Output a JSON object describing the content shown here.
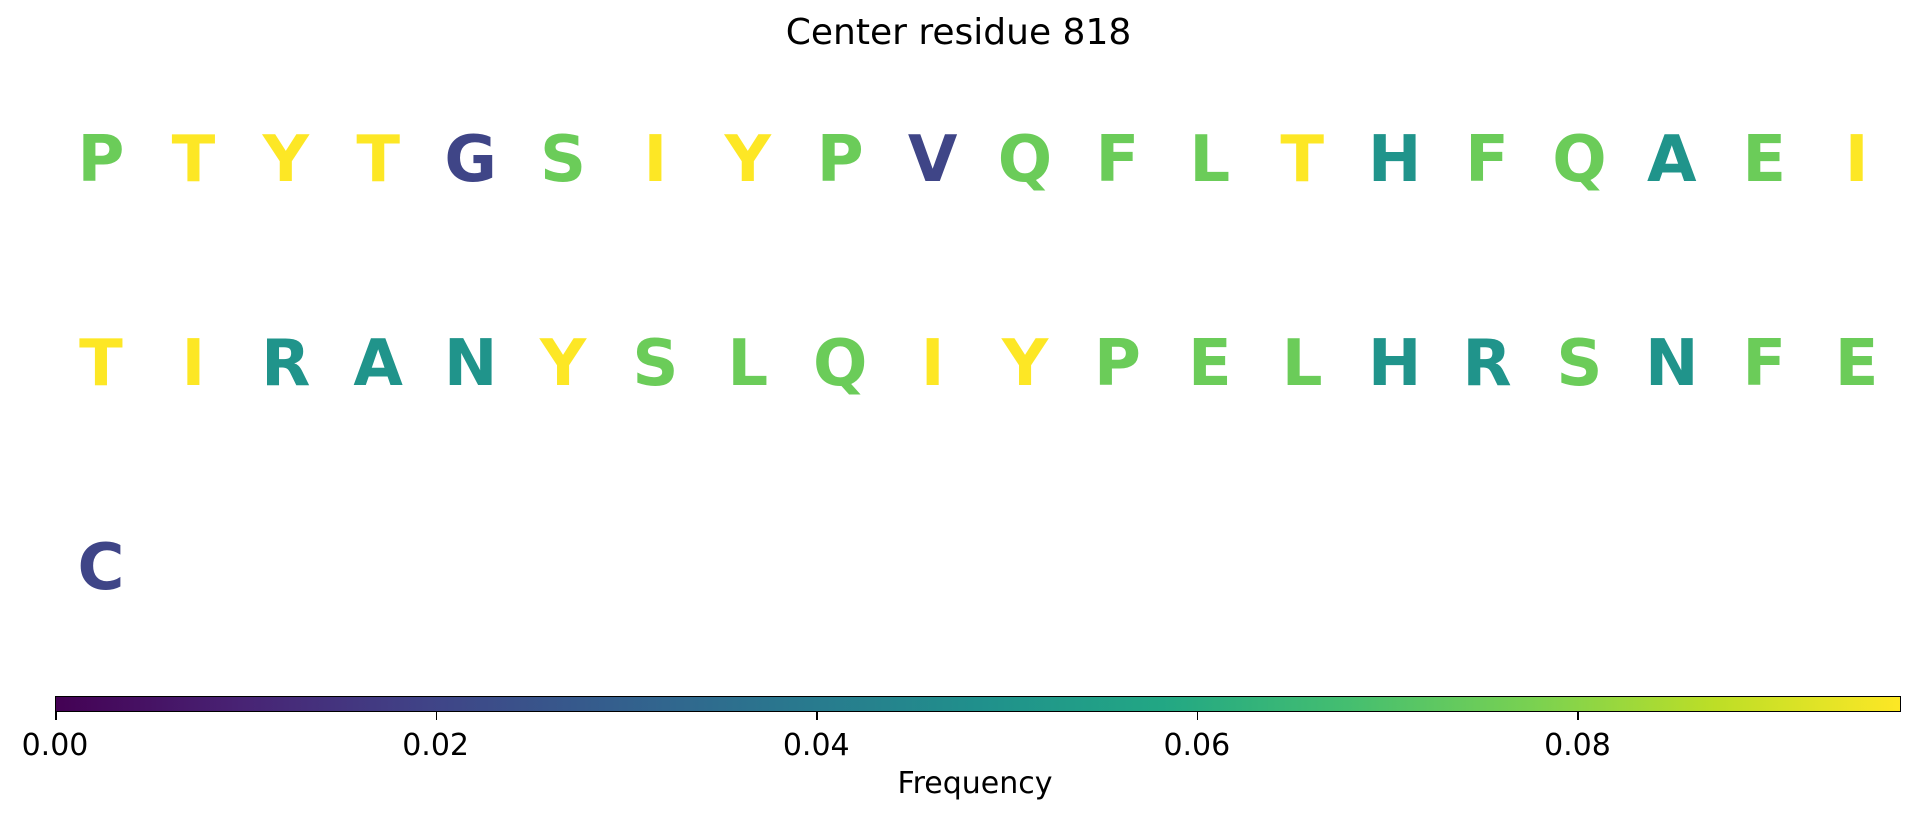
{
  "chart_data": {
    "type": "sequence-heat",
    "title": "Center residue 818",
    "rows": [
      {
        "residues": [
          "P",
          "T",
          "Y",
          "T",
          "G",
          "S",
          "I",
          "Y",
          "P",
          "V",
          "Q",
          "F",
          "L",
          "T",
          "H",
          "F",
          "Q",
          "A",
          "E",
          "I"
        ],
        "values": [
          0.075,
          0.097,
          0.097,
          0.097,
          0.02,
          0.075,
          0.097,
          0.097,
          0.075,
          0.02,
          0.075,
          0.075,
          0.075,
          0.097,
          0.05,
          0.075,
          0.075,
          0.05,
          0.075,
          0.097
        ]
      },
      {
        "residues": [
          "T",
          "I",
          "R",
          "A",
          "N",
          "Y",
          "S",
          "L",
          "Q",
          "I",
          "Y",
          "P",
          "E",
          "L",
          "H",
          "R",
          "S",
          "N",
          "F",
          "E"
        ],
        "values": [
          0.097,
          0.097,
          0.05,
          0.05,
          0.05,
          0.097,
          0.075,
          0.075,
          0.075,
          0.097,
          0.097,
          0.075,
          0.075,
          0.075,
          0.05,
          0.05,
          0.075,
          0.05,
          0.075,
          0.075
        ]
      },
      {
        "residues": [
          "C"
        ],
        "values": [
          0.02
        ]
      }
    ],
    "colorbar": {
      "label": "Frequency",
      "colormap": "viridis",
      "range": [
        0.0,
        0.097
      ],
      "ticks": [
        0.0,
        0.02,
        0.04,
        0.06,
        0.08
      ],
      "tick_labels": [
        "0.00",
        "0.02",
        "0.04",
        "0.06",
        "0.08"
      ],
      "orientation": "horizontal"
    }
  }
}
